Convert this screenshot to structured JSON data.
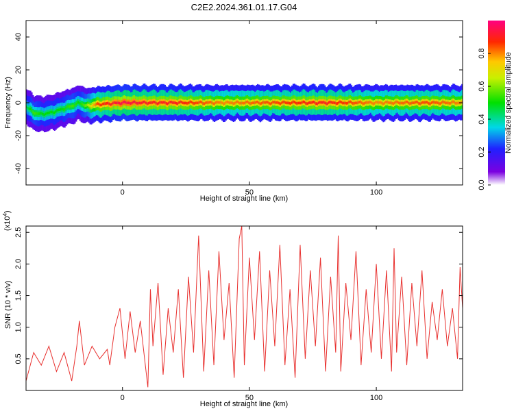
{
  "title": "C2E2.2024.361.01.17.G04",
  "chart_data": [
    {
      "type": "heatmap",
      "name": "spectrogram",
      "xlabel": "Height of straight line (km)",
      "ylabel": "Frequency (Hz)",
      "xlim": [
        -38,
        134
      ],
      "ylim": [
        -50,
        50
      ],
      "xticks": [
        0,
        50,
        100
      ],
      "yticks": [
        -40,
        -20,
        0,
        20,
        40
      ],
      "ridge": {
        "x": [
          -38,
          -35,
          -32,
          -28,
          -24,
          -20,
          -17,
          -14,
          -10,
          0,
          10,
          20,
          40,
          60,
          80,
          100,
          120,
          134
        ],
        "frequency": [
          -2,
          -6,
          -7,
          -6,
          -4,
          -2,
          0,
          -2,
          -1,
          0,
          0,
          0,
          0,
          0,
          0,
          0,
          0,
          0
        ],
        "amplitude": [
          0.45,
          0.55,
          0.5,
          0.5,
          0.5,
          0.55,
          0.5,
          0.6,
          0.85,
          0.95,
          0.9,
          0.9,
          0.8,
          0.85,
          0.9,
          0.8,
          0.85,
          0.8
        ]
      },
      "colorbar": {
        "label": "Normalized spectral amplitude",
        "range": [
          0,
          1
        ],
        "ticks": [
          0.0,
          0.2,
          0.4,
          0.6,
          0.8
        ]
      }
    },
    {
      "type": "line",
      "name": "snr",
      "xlabel": "Height of straight line (km)",
      "ylabel": "SNR (10 * v/v)",
      "multiplier": "(x10^4)",
      "multiplier_base": "(x10",
      "multiplier_exp": "4",
      "multiplier_close": ")",
      "xlim": [
        -38,
        134
      ],
      "ylim": [
        0,
        2.6
      ],
      "xticks": [
        0,
        50,
        100
      ],
      "yticks": [
        0.5,
        1.0,
        1.5,
        2.0,
        2.5
      ],
      "series": [
        {
          "color": "#e8302e",
          "x": [
            -38,
            -35,
            -32,
            -29,
            -26,
            -23,
            -20,
            -18,
            -17,
            -15,
            -12,
            -9,
            -6,
            -5,
            -3,
            -1,
            1,
            3,
            5,
            7,
            9,
            10,
            11,
            12,
            14,
            16,
            18,
            20,
            22,
            24,
            26,
            28,
            30,
            32,
            34,
            36,
            38,
            40,
            42,
            44,
            46,
            47,
            48,
            50,
            52,
            54,
            56,
            58,
            60,
            62,
            64,
            66,
            68,
            70,
            72,
            74,
            76,
            78,
            80,
            82,
            84,
            85,
            86,
            88,
            90,
            92,
            94,
            96,
            98,
            100,
            102,
            104,
            106,
            107,
            108,
            110,
            112,
            114,
            116,
            118,
            120,
            122,
            124,
            126,
            128,
            130,
            132,
            133,
            134
          ],
          "y": [
            0.15,
            0.6,
            0.4,
            0.7,
            0.3,
            0.6,
            0.15,
            0.7,
            1.1,
            0.4,
            0.7,
            0.5,
            0.65,
            0.4,
            1.0,
            1.3,
            0.5,
            1.25,
            0.6,
            1.1,
            0.4,
            0.05,
            1.6,
            0.7,
            1.7,
            0.25,
            1.3,
            0.6,
            1.6,
            0.2,
            1.8,
            0.6,
            2.45,
            0.3,
            1.9,
            0.4,
            2.2,
            0.8,
            1.7,
            0.2,
            2.4,
            2.6,
            0.4,
            2.1,
            0.8,
            2.2,
            0.3,
            1.9,
            0.7,
            2.3,
            0.4,
            1.6,
            0.2,
            2.3,
            0.5,
            1.9,
            0.7,
            2.1,
            0.3,
            1.8,
            0.6,
            2.45,
            0.3,
            1.7,
            0.8,
            2.2,
            0.4,
            1.6,
            0.6,
            2.0,
            0.5,
            1.9,
            0.3,
            2.25,
            0.6,
            1.8,
            0.4,
            1.7,
            0.7,
            1.9,
            0.5,
            1.4,
            0.8,
            1.6,
            0.7,
            1.3,
            0.5,
            1.95,
            1.3
          ]
        }
      ]
    }
  ]
}
